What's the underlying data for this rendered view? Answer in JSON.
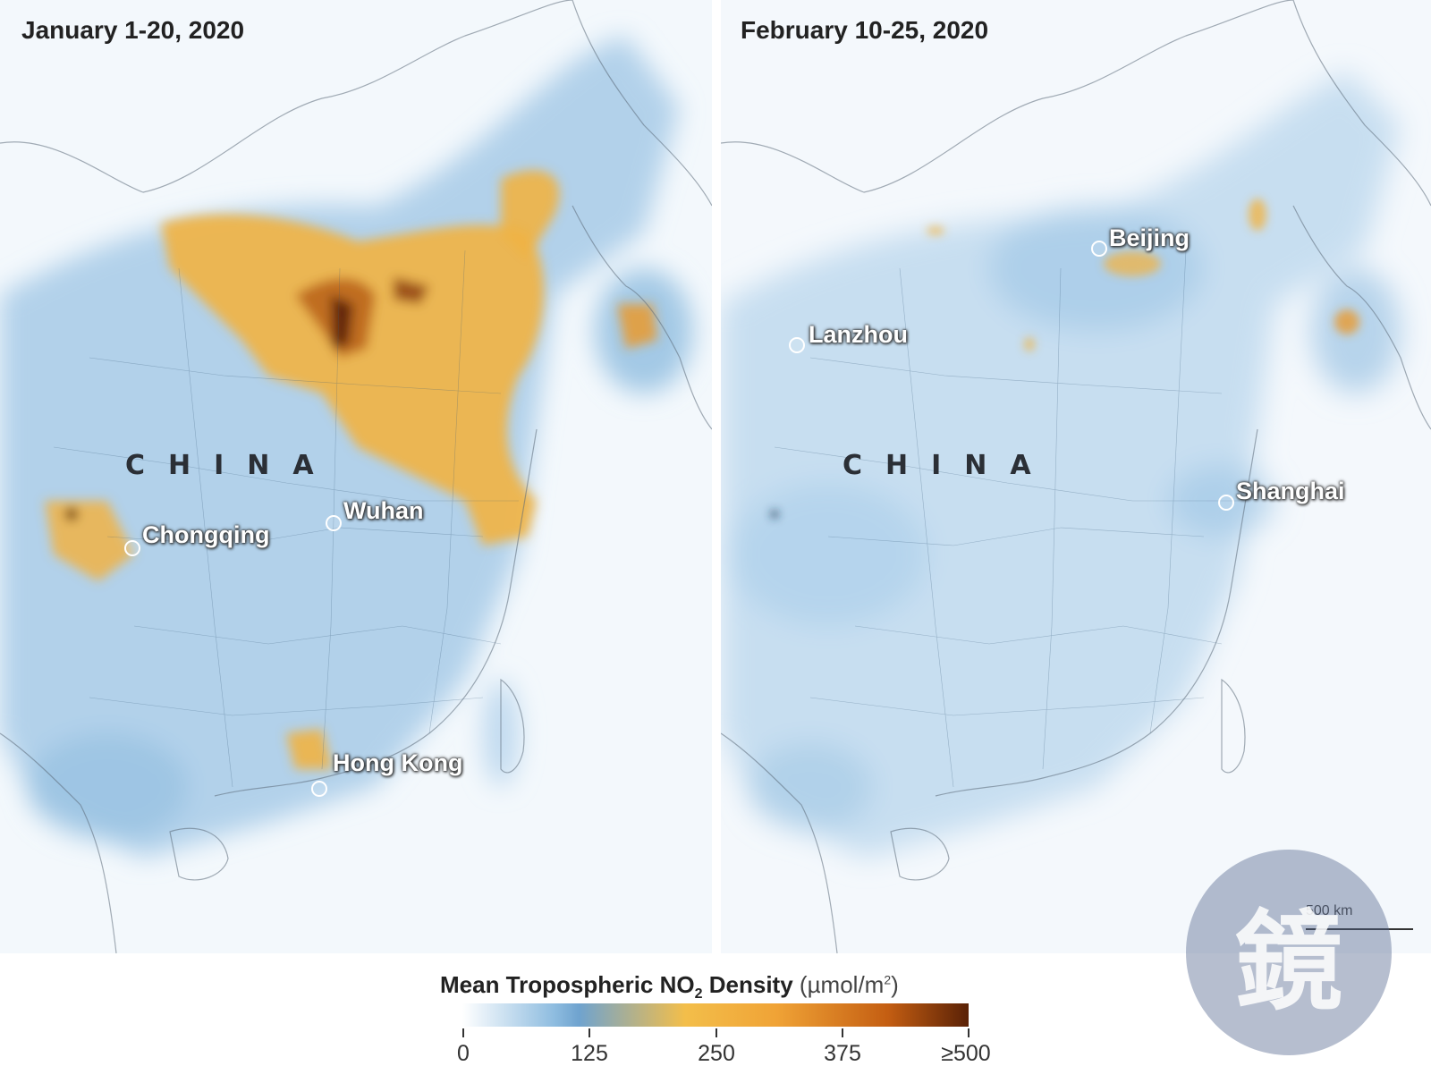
{
  "panels": [
    {
      "title": "January 1-20, 2020",
      "country_label": "CHINA",
      "cities": [
        {
          "name": "Wuhan"
        },
        {
          "name": "Chongqing"
        },
        {
          "name": "Hong Kong"
        }
      ]
    },
    {
      "title": "February 10-25, 2020",
      "country_label": "CHINA",
      "cities": [
        {
          "name": "Beijing"
        },
        {
          "name": "Lanzhou"
        },
        {
          "name": "Shanghai"
        }
      ]
    }
  ],
  "legend": {
    "title_main": "Mean Tropospheric NO",
    "title_sub": "2",
    "title_tail": " Density",
    "unit_prefix": "(µmol/m",
    "unit_sup": "2",
    "unit_suffix": ")",
    "ticks": [
      "0",
      "125",
      "250",
      "375",
      "≥500"
    ],
    "colors": [
      "#ffffff",
      "#6fa3cf",
      "#f3be4a",
      "#f0a336",
      "#c45e12",
      "#5a2106"
    ]
  },
  "scale_label": "500 km",
  "watermark": "鏡"
}
